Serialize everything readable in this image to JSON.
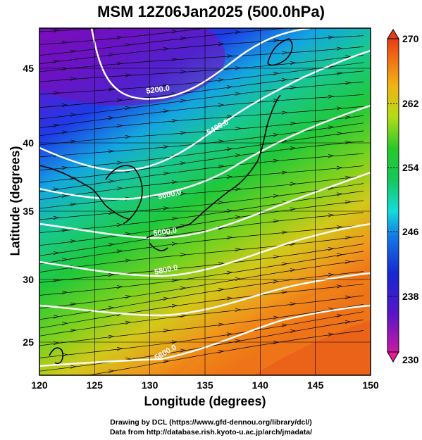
{
  "title": "MSM 12Z06Jan2025 (500.0hPa)",
  "map": {
    "xlabel": "Longitude (degrees)",
    "ylabel": "Latitude  (degrees)",
    "lon_range": [
      120,
      150
    ],
    "lat_range": [
      22.4,
      47.6
    ],
    "lon_ticks": [
      "120",
      "125",
      "130",
      "135",
      "140",
      "145",
      "150"
    ],
    "lat_ticks": [
      "25",
      "30",
      "35",
      "40",
      "45"
    ],
    "contour_labels": [
      "5200.0",
      "5400.0",
      "5600.0",
      "5600.0",
      "5800.0",
      "5800.0"
    ],
    "colors": {
      "cold": "#8a14c8",
      "mid": "#18c846",
      "warm": "#f06e14",
      "contour": "#ffffff",
      "coast": "#000000"
    }
  },
  "colorbar": {
    "labels": [
      "270",
      "262",
      "254",
      "246",
      "238",
      "230"
    ],
    "range": [
      230,
      270
    ]
  },
  "credits": {
    "line1": "Drawing by DCL (https://www.gfd-dennou.org/library/dcl/)",
    "line2": "Data from http://database.rish.kyoto-u.ac.jp/arch/jmadata/"
  }
}
